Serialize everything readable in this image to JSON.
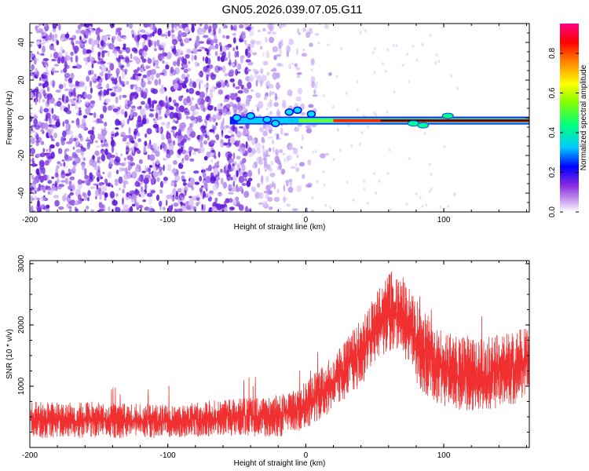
{
  "title": "GN05.2026.039.07.05.G11",
  "chart_data": [
    {
      "type": "heatmap",
      "name": "spectrogram",
      "xlabel": "Height of straight line (km)",
      "ylabel": "Frequency (Hz)",
      "xlim": [
        -200,
        162
      ],
      "ylim": [
        -50,
        50
      ],
      "xticks": [
        -200,
        -100,
        0,
        100
      ],
      "xtick_labels": [
        "-200",
        "-100",
        "0",
        "100"
      ],
      "yticks": [
        -40,
        -20,
        0,
        20,
        40
      ],
      "ytick_labels": [
        "-40",
        "-20",
        "0",
        "20",
        "40"
      ],
      "colorbar": {
        "label": "Normalized spectral amplitude",
        "ticks": [
          0.0,
          0.2,
          0.4,
          0.6,
          0.8
        ],
        "tick_labels": [
          "0.0",
          "0.2",
          "0.4",
          "0.6",
          "0.8"
        ],
        "range": [
          0,
          0.95
        ],
        "colors": [
          "#ffffff",
          "#c8a0f0",
          "#8a2be2",
          "#0000ff",
          "#00c8ff",
          "#00ff80",
          "#80ff00",
          "#ffff00",
          "#ff8000",
          "#ff0000",
          "#ff0080"
        ]
      },
      "signal_line": {
        "x_start": -55,
        "x_end": 162,
        "frequency": -1.5
      },
      "noise_region": {
        "x_start": -200,
        "x_end": -10,
        "dense_until": -40
      }
    },
    {
      "type": "line",
      "name": "snr",
      "xlabel": "Height of straight line (km)",
      "ylabel": "SNR (10 * v/v)",
      "xlim": [
        -200,
        162
      ],
      "ylim": [
        0,
        3050
      ],
      "xticks": [
        -200,
        -100,
        0,
        100
      ],
      "xtick_labels": [
        "-200",
        "-100",
        "0",
        "100"
      ],
      "yticks": [
        1000,
        2000,
        3000
      ],
      "ytick_labels": [
        "1000",
        "2000",
        "3000"
      ],
      "color": "#f03030",
      "envelope": {
        "x": [
          -200,
          -150,
          -100,
          -50,
          -20,
          0,
          20,
          40,
          55,
          65,
          70,
          80,
          95,
          110,
          130,
          150,
          162
        ],
        "low": [
          150,
          150,
          150,
          200,
          150,
          300,
          600,
          1000,
          1500,
          1600,
          1500,
          1000,
          700,
          600,
          600,
          700,
          800
        ],
        "high": [
          750,
          750,
          700,
          800,
          850,
          1100,
          1500,
          2100,
          2700,
          2950,
          2800,
          2400,
          2000,
          1800,
          1800,
          1900,
          2000
        ]
      }
    }
  ]
}
